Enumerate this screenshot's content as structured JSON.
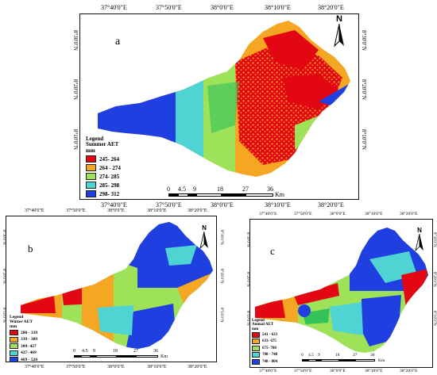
{
  "colors": {
    "red": "#e30613",
    "orange": "#f5a623",
    "lightgreen": "#9ee25a",
    "cyan": "#4fd3d3",
    "blue": "#1f3fe0",
    "green": "#34c25a"
  },
  "map_a": {
    "label": "a",
    "north": "N",
    "top_ticks": [
      "37°40'0\"E",
      "37°50'0\"E",
      "38°0'0\"E",
      "38°10'0\"E",
      "38°20'0\"E"
    ],
    "bottom_ticks": [
      "37°40'0\"E",
      "37°50'0\"E",
      "38°0'0\"E",
      "38°10'0\"E",
      "38°20'0\"E"
    ],
    "left_ticks": [
      "8°30'0\"N",
      "8°20'0\"N",
      "8°10'0\"N"
    ],
    "right_ticks": [
      "8°30'0\"N",
      "8°20'0\"N",
      "8°10'0\"N"
    ],
    "legend": {
      "title1": "Legend",
      "title2": "Summer AET",
      "unit": "mm",
      "items": [
        "245- 264",
        "264 - 274",
        "274- 285",
        "285- 298",
        "298- 312"
      ]
    },
    "scale": {
      "ticks": [
        "0",
        "4.5",
        "9",
        "18",
        "27",
        "36"
      ],
      "unit": "Km"
    }
  },
  "map_b": {
    "label": "b",
    "north": "N",
    "top_ticks": [
      "37°40'0\"E",
      "37°50'0\"E",
      "38°0'0\"E",
      "38°10'0\"E",
      "38°20'0\"E"
    ],
    "bottom_ticks": [
      "37°40'0\"E",
      "37°50'0\"E",
      "38°0'0\"E",
      "38°10'0\"E",
      "38°20'0\"E"
    ],
    "left_ticks": [
      "8°30'0\"N",
      "8°20'0\"N",
      "8°10'0\"N"
    ],
    "right_ticks": [
      "8°30'0\"N",
      "8°20'0\"N",
      "8°10'0\"N"
    ],
    "legend": {
      "title1": "Legend",
      "title2": "Winter AET",
      "unit": "mm",
      "items": [
        "280 - 339",
        "339 - 389",
        "389- 427",
        "427- 469",
        "469 - 526"
      ]
    },
    "scale": {
      "ticks": [
        "0",
        "4.5",
        "9",
        "18",
        "27",
        "36"
      ],
      "unit": "Km"
    }
  },
  "map_c": {
    "label": "c",
    "north": "N",
    "top_ticks": [
      "37°40'0\"E",
      "37°50'0\"E",
      "38°0'0\"E",
      "38°10'0\"E",
      "38°20'0\"E"
    ],
    "bottom_ticks": [
      "37°40'0\"E",
      "37°50'0\"E",
      "38°0'0\"E",
      "38°10'0\"E",
      "38°20'0\"E"
    ],
    "left_ticks": [
      "8°30'0\"N",
      "8°20'0\"N",
      "8°10'0\"N"
    ],
    "right_ticks": [
      "8°30'0\"N",
      "8°20'0\"N",
      "8°10'0\"N"
    ],
    "legend": {
      "title1": "Legend",
      "title2": "Annual AET",
      "unit": "mm",
      "items": [
        "541 - 633",
        "633- 675",
        "675- 708",
        "708 - 748",
        "748 - 804"
      ]
    },
    "scale": {
      "ticks": [
        "0",
        "4.5",
        "9",
        "18",
        "27",
        "36"
      ],
      "unit": "Km"
    }
  }
}
